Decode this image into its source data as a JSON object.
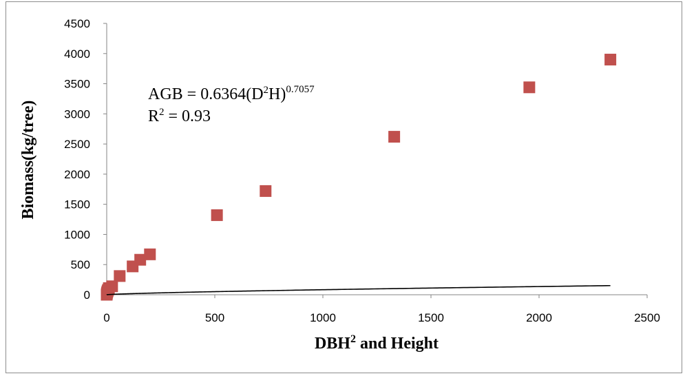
{
  "chart_data": {
    "type": "scatter",
    "title": "",
    "xlabel": "DBH",
    "xlabel_sup": "2",
    "xlabel_rest": " and Height",
    "ylabel": "Biomass(kg/tree)",
    "xlim": [
      0,
      2500
    ],
    "ylim": [
      0,
      4500
    ],
    "x_ticks": [
      "0",
      "500",
      "1000",
      "1500",
      "2000",
      "2500"
    ],
    "y_ticks": [
      "0",
      "500",
      "1000",
      "1500",
      "2000",
      "2500",
      "3000",
      "3500",
      "4000",
      "4500"
    ],
    "grid": false,
    "legend": "none",
    "marker_color": "#c0504d",
    "trendline_color": "#000000",
    "series": [
      {
        "marker": "square",
        "points": [
          {
            "x": 0,
            "y": 0
          },
          {
            "x": 1,
            "y": 20
          },
          {
            "x": 2,
            "y": 40
          },
          {
            "x": 4,
            "y": 60
          },
          {
            "x": 6,
            "y": 80
          },
          {
            "x": 10,
            "y": 110
          },
          {
            "x": 25,
            "y": 140
          },
          {
            "x": 60,
            "y": 310
          },
          {
            "x": 120,
            "y": 470
          },
          {
            "x": 155,
            "y": 580
          },
          {
            "x": 200,
            "y": 670
          },
          {
            "x": 510,
            "y": 1320
          },
          {
            "x": 735,
            "y": 1720
          },
          {
            "x": 1330,
            "y": 2620
          },
          {
            "x": 1955,
            "y": 3440
          },
          {
            "x": 2330,
            "y": 3900
          }
        ]
      }
    ],
    "trendline": {
      "type": "power",
      "coefficient": 0.6364,
      "exponent": 0.7057
    },
    "annotation": {
      "eq_prefix": "AGB = 0.6364(D",
      "eq_sup1": "2",
      "eq_mid": "H)",
      "eq_sup2": "0.7057",
      "r2_prefix": "R",
      "r2_sup": "2",
      "r2_rest": " = 0.93"
    }
  }
}
